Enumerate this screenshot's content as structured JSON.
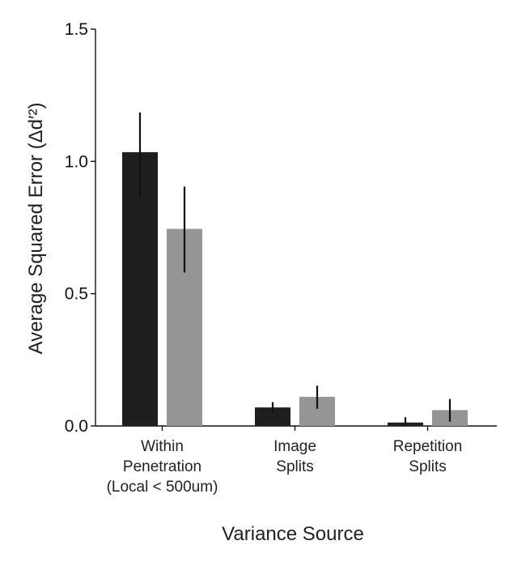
{
  "chart_data": {
    "type": "bar",
    "categories": [
      [
        "Within",
        "Penetration",
        "(Local < 500um)"
      ],
      [
        "Image",
        "Splits"
      ],
      [
        "Repetition",
        "Splits"
      ]
    ],
    "series": [
      {
        "color": "#1f1f1f",
        "values": [
          1.035,
          0.07,
          0.013
        ],
        "errors": [
          [
            0.865,
            1.185
          ],
          [
            0.05,
            0.09
          ],
          [
            0.0,
            0.033
          ]
        ]
      },
      {
        "color": "#959595",
        "values": [
          0.745,
          0.11,
          0.06
        ],
        "errors": [
          [
            0.58,
            0.905
          ],
          [
            0.065,
            0.152
          ],
          [
            0.016,
            0.102
          ]
        ]
      }
    ],
    "xlabel": "Variance Source",
    "ylabel": "Average Squared Error (Δd′²)",
    "ylim": [
      0,
      1.5
    ],
    "yticks": [
      "0.0",
      "0.5",
      "1.0",
      "1.5"
    ],
    "grid": false
  }
}
